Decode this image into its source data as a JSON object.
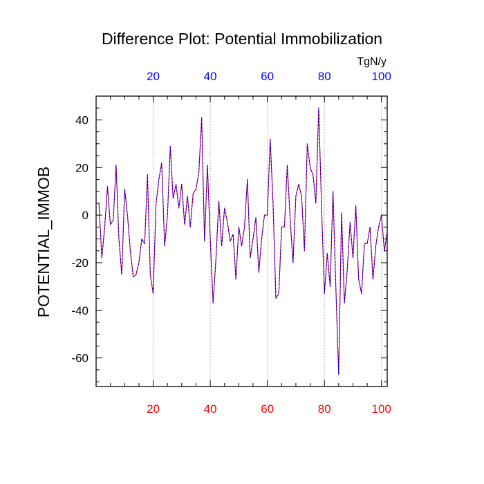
{
  "chart_data": {
    "type": "line",
    "title": "Difference Plot: Potential Immobilization",
    "ylabel": "POTENTIAL_IMMOB",
    "units": "TgN/y",
    "xlim": [
      0,
      102
    ],
    "ylim": [
      -72,
      50
    ],
    "x_ticks": [
      20,
      40,
      60,
      80,
      100
    ],
    "x_tick_labels": [
      "20",
      "40",
      "60",
      "80",
      "100"
    ],
    "y_ticks": [
      40,
      20,
      0,
      -20,
      -40,
      -60
    ],
    "y_tick_labels": [
      "40",
      "20",
      "0",
      "-20",
      "-40",
      "-60"
    ],
    "grid": "vertical dotted at x ticks",
    "colors": {
      "bottom_tick_labels": "#ff0000",
      "top_tick_labels": "#0000ff",
      "series_primary": "#ff0000",
      "series_secondary": "#0000ff"
    },
    "series": [
      {
        "x": [
          1,
          2,
          3,
          4,
          5,
          6,
          7,
          8,
          9,
          10,
          11,
          12,
          13,
          14,
          15,
          16,
          17,
          18,
          19,
          20,
          21,
          22,
          23,
          24,
          25,
          26,
          27,
          28,
          29,
          30,
          31,
          32,
          33,
          34,
          35,
          36,
          37,
          38,
          39,
          40,
          41,
          42,
          43,
          44,
          45,
          46,
          47,
          48,
          49,
          50,
          51,
          52,
          53,
          54,
          55,
          56,
          57,
          58,
          59,
          60,
          61,
          62,
          63,
          64,
          65,
          66,
          67,
          68,
          69,
          70,
          71,
          72,
          73,
          74,
          75,
          76,
          77,
          78,
          79,
          80,
          81,
          82,
          83,
          84,
          85,
          86,
          87,
          88,
          89,
          90,
          91,
          92,
          93,
          94,
          95,
          96,
          97,
          98,
          99,
          100,
          101,
          102
        ],
        "values": [
          5,
          -18,
          -5,
          12,
          -4,
          -2,
          21,
          -10,
          -25,
          11,
          0,
          -15,
          -26,
          -25,
          -20,
          -10,
          -12,
          17,
          -25,
          -33,
          5,
          15,
          22,
          -13,
          0,
          29,
          7,
          13,
          3,
          13,
          -4,
          8,
          -5,
          9,
          11,
          18,
          41,
          -11,
          21,
          -10,
          -37,
          -18,
          6,
          -13,
          3,
          -3,
          -11,
          -8,
          -27,
          -5,
          -13,
          -5,
          15,
          -18,
          -10,
          -1,
          -24,
          -10,
          0,
          0,
          32,
          5,
          -35,
          -33,
          -5,
          -5,
          21,
          -2,
          -20,
          8,
          13,
          8,
          -15,
          30,
          20,
          17,
          5,
          45,
          3,
          -33,
          -16,
          -30,
          10,
          -30,
          -67,
          1,
          -37,
          -23,
          -3,
          -18,
          4,
          -27,
          -33,
          -12,
          -12,
          -5,
          -27,
          -13,
          -5,
          0,
          -15,
          -7
        ]
      }
    ]
  }
}
